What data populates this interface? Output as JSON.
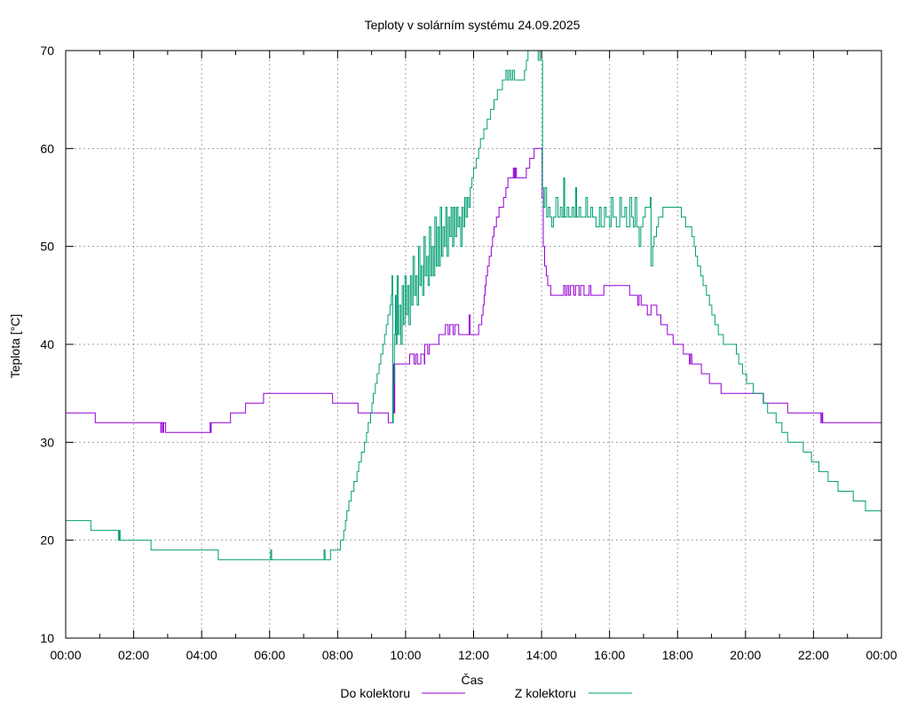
{
  "chart_data": {
    "type": "line",
    "title": "Teploty v solárním systému 24.09.2025",
    "xlabel": "Čas",
    "ylabel": "Teplota [°C]",
    "xlim": [
      0,
      24
    ],
    "ylim": [
      10,
      70
    ],
    "grid": true,
    "legend_position": "bottom",
    "x_tick_labels": [
      "00:00",
      "02:00",
      "04:00",
      "06:00",
      "08:00",
      "10:00",
      "12:00",
      "14:00",
      "16:00",
      "18:00",
      "20:00",
      "22:00",
      "00:00"
    ],
    "x_tick_hours": [
      0,
      2,
      4,
      6,
      8,
      10,
      12,
      14,
      16,
      18,
      20,
      22,
      24
    ],
    "y_ticks": [
      10,
      20,
      30,
      40,
      50,
      60,
      70
    ],
    "series": [
      {
        "name": "Do kolektoru",
        "color": "#9400d3",
        "points": [
          [
            0,
            33
          ],
          [
            0.87,
            32
          ],
          [
            2.8,
            31
          ],
          [
            2.82,
            32
          ],
          [
            2.86,
            31
          ],
          [
            2.88,
            32
          ],
          [
            2.94,
            31
          ],
          [
            4.25,
            32
          ],
          [
            4.27,
            31
          ],
          [
            4.28,
            32
          ],
          [
            4.85,
            33
          ],
          [
            5.29,
            34
          ],
          [
            5.82,
            35
          ],
          [
            7.85,
            34
          ],
          [
            8.6,
            33
          ],
          [
            9.49,
            32
          ],
          [
            9.62,
            33
          ],
          [
            9.64,
            38
          ],
          [
            9.66,
            33
          ],
          [
            9.68,
            38
          ],
          [
            10.12,
            39
          ],
          [
            10.25,
            38
          ],
          [
            10.3,
            39
          ],
          [
            10.35,
            38
          ],
          [
            10.45,
            39
          ],
          [
            10.55,
            38
          ],
          [
            10.56,
            40
          ],
          [
            10.65,
            39
          ],
          [
            10.7,
            40
          ],
          [
            10.98,
            41
          ],
          [
            11.17,
            42
          ],
          [
            11.25,
            41
          ],
          [
            11.3,
            42
          ],
          [
            11.4,
            41
          ],
          [
            11.45,
            42
          ],
          [
            11.56,
            41
          ],
          [
            11.87,
            43
          ],
          [
            11.9,
            41
          ],
          [
            12.15,
            42
          ],
          [
            12.24,
            43
          ],
          [
            12.28,
            44
          ],
          [
            12.31,
            45
          ],
          [
            12.34,
            46
          ],
          [
            12.37,
            47
          ],
          [
            12.41,
            48
          ],
          [
            12.46,
            49
          ],
          [
            12.52,
            50
          ],
          [
            12.56,
            51
          ],
          [
            12.6,
            52
          ],
          [
            12.67,
            53
          ],
          [
            12.75,
            54
          ],
          [
            12.88,
            55
          ],
          [
            12.95,
            56
          ],
          [
            13.01,
            57
          ],
          [
            13.17,
            58
          ],
          [
            13.2,
            57
          ],
          [
            13.23,
            58
          ],
          [
            13.26,
            57
          ],
          [
            13.55,
            58
          ],
          [
            13.65,
            59
          ],
          [
            13.78,
            60
          ],
          [
            14.02,
            55
          ],
          [
            14.05,
            50
          ],
          [
            14.09,
            48
          ],
          [
            14.14,
            47
          ],
          [
            14.18,
            46
          ],
          [
            14.27,
            45
          ],
          [
            14.65,
            46
          ],
          [
            14.7,
            45
          ],
          [
            14.75,
            46
          ],
          [
            14.8,
            45
          ],
          [
            14.85,
            46
          ],
          [
            14.95,
            45
          ],
          [
            15.0,
            46
          ],
          [
            15.1,
            45
          ],
          [
            15.15,
            46
          ],
          [
            15.25,
            45
          ],
          [
            15.4,
            46
          ],
          [
            15.45,
            45
          ],
          [
            15.83,
            46
          ],
          [
            16.59,
            45
          ],
          [
            16.83,
            44
          ],
          [
            16.87,
            45
          ],
          [
            16.93,
            44
          ],
          [
            17.11,
            43
          ],
          [
            17.22,
            44
          ],
          [
            17.39,
            43
          ],
          [
            17.51,
            42
          ],
          [
            17.7,
            41
          ],
          [
            17.87,
            40
          ],
          [
            18.17,
            39
          ],
          [
            18.35,
            38
          ],
          [
            18.38,
            39
          ],
          [
            18.42,
            38
          ],
          [
            18.7,
            37
          ],
          [
            18.94,
            36
          ],
          [
            19.28,
            35
          ],
          [
            20.53,
            34
          ],
          [
            21.24,
            33
          ],
          [
            22.22,
            32
          ],
          [
            22.25,
            33
          ],
          [
            22.27,
            32
          ],
          [
            24,
            32
          ]
        ]
      },
      {
        "name": "Z kolektoru",
        "color": "#009e73",
        "points": [
          [
            0,
            22
          ],
          [
            0.74,
            21
          ],
          [
            1.55,
            20
          ],
          [
            1.58,
            21
          ],
          [
            1.6,
            20
          ],
          [
            2.51,
            19
          ],
          [
            4.49,
            18
          ],
          [
            6.03,
            19
          ],
          [
            6.06,
            18
          ],
          [
            7.6,
            19
          ],
          [
            7.63,
            18
          ],
          [
            7.79,
            19
          ],
          [
            8.08,
            20
          ],
          [
            8.18,
            21
          ],
          [
            8.23,
            22
          ],
          [
            8.27,
            23
          ],
          [
            8.33,
            24
          ],
          [
            8.4,
            25
          ],
          [
            8.48,
            26
          ],
          [
            8.57,
            27
          ],
          [
            8.62,
            28
          ],
          [
            8.7,
            29
          ],
          [
            8.79,
            30
          ],
          [
            8.85,
            31
          ],
          [
            8.9,
            32
          ],
          [
            8.97,
            33
          ],
          [
            9.01,
            34
          ],
          [
            9.05,
            35
          ],
          [
            9.11,
            36
          ],
          [
            9.16,
            37
          ],
          [
            9.22,
            38
          ],
          [
            9.27,
            39
          ],
          [
            9.33,
            40
          ],
          [
            9.38,
            41
          ],
          [
            9.43,
            42
          ],
          [
            9.48,
            43
          ],
          [
            9.54,
            44
          ],
          [
            9.58,
            45
          ],
          [
            9.6,
            47
          ],
          [
            9.62,
            32
          ],
          [
            9.64,
            36
          ],
          [
            9.67,
            41
          ],
          [
            9.7,
            45
          ],
          [
            9.72,
            40
          ],
          [
            9.75,
            47
          ],
          [
            9.78,
            41
          ],
          [
            9.82,
            44
          ],
          [
            9.86,
            40
          ],
          [
            9.9,
            46
          ],
          [
            9.94,
            42
          ],
          [
            9.98,
            47
          ],
          [
            10.02,
            43
          ],
          [
            10.06,
            46
          ],
          [
            10.1,
            42
          ],
          [
            10.14,
            47
          ],
          [
            10.18,
            44
          ],
          [
            10.22,
            49
          ],
          [
            10.26,
            45
          ],
          [
            10.3,
            47
          ],
          [
            10.34,
            44
          ],
          [
            10.38,
            50
          ],
          [
            10.42,
            46
          ],
          [
            10.46,
            48
          ],
          [
            10.5,
            45
          ],
          [
            10.54,
            51
          ],
          [
            10.58,
            47
          ],
          [
            10.62,
            49
          ],
          [
            10.66,
            46
          ],
          [
            10.7,
            52
          ],
          [
            10.74,
            47
          ],
          [
            10.78,
            50
          ],
          [
            10.82,
            47
          ],
          [
            10.86,
            53
          ],
          [
            10.9,
            48
          ],
          [
            10.94,
            52
          ],
          [
            10.98,
            48
          ],
          [
            11.02,
            54
          ],
          [
            11.06,
            49
          ],
          [
            11.1,
            52
          ],
          [
            11.14,
            50
          ],
          [
            11.18,
            54
          ],
          [
            11.22,
            49
          ],
          [
            11.26,
            53
          ],
          [
            11.3,
            51
          ],
          [
            11.34,
            54
          ],
          [
            11.38,
            50
          ],
          [
            11.42,
            54
          ],
          [
            11.46,
            51
          ],
          [
            11.5,
            54
          ],
          [
            11.54,
            52
          ],
          [
            11.58,
            53
          ],
          [
            11.62,
            50
          ],
          [
            11.66,
            54
          ],
          [
            11.7,
            52
          ],
          [
            11.74,
            55
          ],
          [
            11.78,
            53
          ],
          [
            11.82,
            55
          ],
          [
            11.86,
            54
          ],
          [
            11.9,
            56
          ],
          [
            11.95,
            57
          ],
          [
            12.0,
            58
          ],
          [
            12.08,
            59
          ],
          [
            12.15,
            60
          ],
          [
            12.2,
            61
          ],
          [
            12.3,
            62
          ],
          [
            12.4,
            63
          ],
          [
            12.5,
            64
          ],
          [
            12.6,
            65
          ],
          [
            12.7,
            66
          ],
          [
            12.85,
            67
          ],
          [
            12.95,
            68
          ],
          [
            13.0,
            67
          ],
          [
            13.05,
            68
          ],
          [
            13.1,
            67
          ],
          [
            13.15,
            68
          ],
          [
            13.2,
            67
          ],
          [
            13.5,
            68
          ],
          [
            13.55,
            69
          ],
          [
            13.6,
            70
          ],
          [
            13.65,
            71
          ],
          [
            13.9,
            69
          ],
          [
            13.95,
            70
          ],
          [
            14.0,
            69
          ],
          [
            14.03,
            56
          ],
          [
            14.06,
            54
          ],
          [
            14.1,
            56
          ],
          [
            14.15,
            53
          ],
          [
            14.2,
            54
          ],
          [
            14.25,
            53
          ],
          [
            14.3,
            52
          ],
          [
            14.35,
            53
          ],
          [
            14.42,
            55
          ],
          [
            14.48,
            53
          ],
          [
            14.55,
            54
          ],
          [
            14.6,
            53
          ],
          [
            14.65,
            57
          ],
          [
            14.68,
            53
          ],
          [
            14.75,
            54
          ],
          [
            14.8,
            53
          ],
          [
            14.9,
            54
          ],
          [
            14.95,
            53
          ],
          [
            15.0,
            56
          ],
          [
            15.03,
            53
          ],
          [
            15.1,
            54
          ],
          [
            15.15,
            53
          ],
          [
            15.3,
            55
          ],
          [
            15.35,
            53
          ],
          [
            15.45,
            54
          ],
          [
            15.5,
            53
          ],
          [
            15.6,
            52
          ],
          [
            15.7,
            54
          ],
          [
            15.75,
            52
          ],
          [
            15.85,
            54
          ],
          [
            15.9,
            53
          ],
          [
            16.0,
            52
          ],
          [
            16.05,
            55
          ],
          [
            16.1,
            53
          ],
          [
            16.2,
            52
          ],
          [
            16.3,
            55
          ],
          [
            16.35,
            53
          ],
          [
            16.45,
            54
          ],
          [
            16.5,
            52
          ],
          [
            16.6,
            55
          ],
          [
            16.65,
            53
          ],
          [
            16.7,
            52
          ],
          [
            16.75,
            55
          ],
          [
            16.8,
            52
          ],
          [
            16.87,
            50
          ],
          [
            16.92,
            52
          ],
          [
            16.98,
            53
          ],
          [
            17.05,
            54
          ],
          [
            17.2,
            55
          ],
          [
            17.22,
            48
          ],
          [
            17.27,
            50
          ],
          [
            17.31,
            51
          ],
          [
            17.38,
            52
          ],
          [
            17.44,
            53
          ],
          [
            17.57,
            54
          ],
          [
            18.11,
            53
          ],
          [
            18.24,
            52
          ],
          [
            18.42,
            51
          ],
          [
            18.49,
            50
          ],
          [
            18.53,
            49
          ],
          [
            18.59,
            48
          ],
          [
            18.68,
            47
          ],
          [
            18.75,
            46
          ],
          [
            18.85,
            45
          ],
          [
            18.94,
            44
          ],
          [
            19.01,
            43
          ],
          [
            19.1,
            42
          ],
          [
            19.2,
            41
          ],
          [
            19.35,
            40
          ],
          [
            19.73,
            39
          ],
          [
            19.8,
            38
          ],
          [
            19.91,
            37
          ],
          [
            20.03,
            36
          ],
          [
            20.23,
            35
          ],
          [
            20.52,
            34
          ],
          [
            20.65,
            33
          ],
          [
            20.9,
            32
          ],
          [
            21.07,
            31
          ],
          [
            21.24,
            30
          ],
          [
            21.7,
            29
          ],
          [
            21.94,
            28
          ],
          [
            22.16,
            27
          ],
          [
            22.43,
            26
          ],
          [
            22.72,
            25
          ],
          [
            23.17,
            24
          ],
          [
            23.53,
            23
          ],
          [
            24,
            23
          ]
        ]
      }
    ]
  }
}
